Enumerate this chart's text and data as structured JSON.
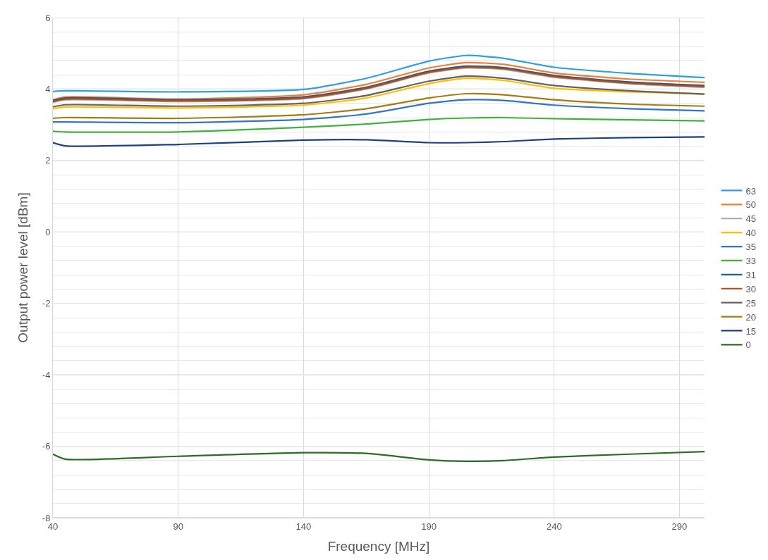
{
  "chart_data": {
    "type": "line",
    "xlabel": "Frequency [MHz]",
    "ylabel": "Output power level [dBm]",
    "x": [
      40,
      45,
      90,
      140,
      165,
      190,
      205,
      220,
      240,
      270,
      300
    ],
    "xlim": [
      40,
      300
    ],
    "xticks": [
      40,
      90,
      140,
      190,
      240,
      290
    ],
    "ylim": [
      -8,
      6
    ],
    "yticks": [
      -8,
      {
        "value": -7.6,
        "label": null
      },
      {
        "value": -7.2,
        "label": null
      },
      {
        "value": -6.8,
        "label": null
      },
      {
        "value": -6.4,
        "label": null
      },
      -6,
      {
        "value": -5.6,
        "label": null
      },
      {
        "value": -5.2,
        "label": null
      },
      {
        "value": -4.8,
        "label": null
      },
      {
        "value": -4.4,
        "label": null
      },
      -4,
      {
        "value": -3.6,
        "label": null
      },
      {
        "value": -3.2,
        "label": null
      },
      {
        "value": -2.8,
        "label": null
      },
      {
        "value": -2.4,
        "label": null
      },
      -2,
      {
        "value": -1.6,
        "label": null
      },
      {
        "value": -1.2,
        "label": null
      },
      {
        "value": -0.8,
        "label": null
      },
      {
        "value": -0.4,
        "label": null
      },
      0,
      {
        "value": 0.4,
        "label": null
      },
      {
        "value": 0.8,
        "label": null
      },
      {
        "value": 1.2,
        "label": null
      },
      {
        "value": 1.6,
        "label": null
      },
      2,
      {
        "value": 2.4,
        "label": null
      },
      {
        "value": 2.8,
        "label": null
      },
      {
        "value": 3.2,
        "label": null
      },
      {
        "value": 3.6,
        "label": null
      },
      4,
      {
        "value": 4.4,
        "label": null
      },
      {
        "value": 4.8,
        "label": null
      },
      {
        "value": 5.2,
        "label": null
      },
      {
        "value": 5.6,
        "label": null
      },
      6
    ],
    "grid": true,
    "legend": "right",
    "marker": "none",
    "line_style": "solid",
    "series": [
      {
        "name": "63",
        "color": "#2e9fe0",
        "values": [
          3.93,
          3.95,
          3.92,
          3.99,
          4.3,
          4.78,
          4.94,
          4.86,
          4.61,
          4.44,
          4.32
        ]
      },
      {
        "name": "50",
        "color": "#f47c30",
        "values": [
          3.7,
          3.78,
          3.72,
          3.84,
          4.13,
          4.59,
          4.74,
          4.69,
          4.45,
          4.28,
          4.19
        ]
      },
      {
        "name": "45",
        "color": "#a5a5a5",
        "values": [
          3.63,
          3.7,
          3.65,
          3.73,
          4.0,
          4.45,
          4.59,
          4.55,
          4.33,
          4.15,
          4.05
        ]
      },
      {
        "name": "40",
        "color": "#ffc000",
        "values": [
          3.45,
          3.5,
          3.47,
          3.55,
          3.75,
          4.15,
          4.3,
          4.24,
          4.02,
          3.92,
          3.86
        ]
      },
      {
        "name": "35",
        "color": "#2f75c9",
        "values": [
          3.08,
          3.08,
          3.06,
          3.15,
          3.3,
          3.6,
          3.7,
          3.68,
          3.55,
          3.45,
          3.39
        ]
      },
      {
        "name": "33",
        "color": "#3fb13d",
        "values": [
          2.82,
          2.8,
          2.8,
          2.93,
          3.02,
          3.15,
          3.19,
          3.2,
          3.17,
          3.14,
          3.11
        ]
      },
      {
        "name": "31",
        "color": "#1a5fa0",
        "values": [
          3.68,
          3.75,
          3.7,
          3.78,
          4.05,
          4.5,
          4.64,
          4.6,
          4.38,
          4.2,
          4.1
        ]
      },
      {
        "name": "30",
        "color": "#b84a10",
        "values": [
          3.65,
          3.72,
          3.67,
          3.75,
          4.02,
          4.47,
          4.61,
          4.57,
          4.35,
          4.17,
          4.07
        ]
      },
      {
        "name": "25",
        "color": "#636363",
        "values": [
          3.5,
          3.56,
          3.52,
          3.6,
          3.82,
          4.22,
          4.36,
          4.3,
          4.1,
          3.95,
          3.86
        ]
      },
      {
        "name": "20",
        "color": "#a87a10",
        "values": [
          3.18,
          3.2,
          3.18,
          3.28,
          3.45,
          3.75,
          3.87,
          3.84,
          3.7,
          3.58,
          3.52
        ]
      },
      {
        "name": "15",
        "color": "#1e3f80",
        "values": [
          2.5,
          2.41,
          2.45,
          2.57,
          2.58,
          2.5,
          2.5,
          2.53,
          2.6,
          2.64,
          2.66
        ]
      },
      {
        "name": "0",
        "color": "#2a6e25",
        "values": [
          -6.22,
          -6.36,
          -6.28,
          -6.18,
          -6.2,
          -6.38,
          -6.42,
          -6.4,
          -6.3,
          -6.22,
          -6.15
        ]
      }
    ]
  }
}
